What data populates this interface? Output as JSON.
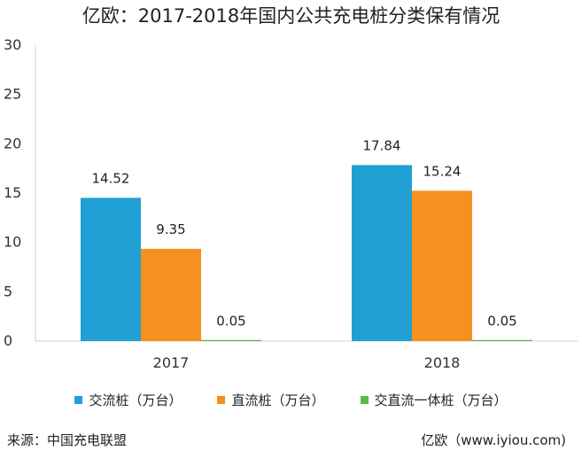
{
  "title": "亿欧：2017-2018年国内公共充电桩分类保有情况",
  "chart_data": {
    "type": "bar",
    "categories": [
      "2017",
      "2018"
    ],
    "series": [
      {
        "name": "交流桩（万台）",
        "color": "#1f9fd4",
        "values": [
          14.52,
          17.84
        ],
        "labels": [
          "14.52",
          "17.84"
        ]
      },
      {
        "name": "直流桩（万台）",
        "color": "#f6901e",
        "values": [
          9.35,
          15.24
        ],
        "labels": [
          "9.35",
          "15.24"
        ]
      },
      {
        "name": "交直流一体桩（万台）",
        "color": "#5bb947",
        "values": [
          0.05,
          0.05
        ],
        "labels": [
          "0.05",
          "0.05"
        ]
      }
    ],
    "yticks": [
      0,
      5,
      10,
      15,
      20,
      25,
      30
    ],
    "ylim": [
      0,
      30
    ],
    "grid": false,
    "legend": "bottom"
  },
  "footer": {
    "source": "来源：中国充电联盟",
    "credit": "亿欧（www.iyiou.com)"
  }
}
